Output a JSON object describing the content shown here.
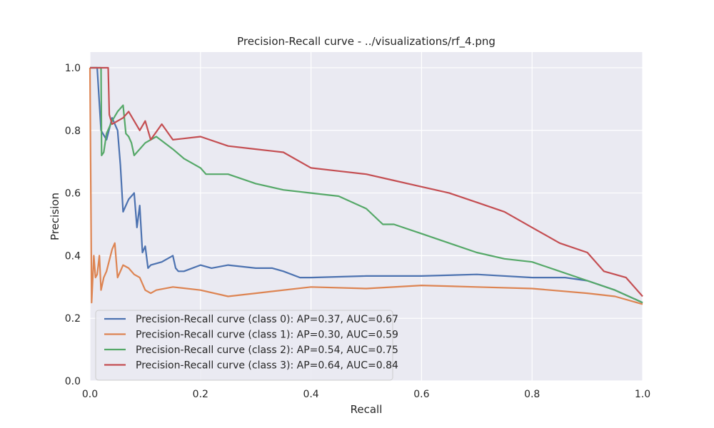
{
  "chart_data": {
    "type": "line",
    "title": "Precision-Recall curve - ../visualizations/rf_4.png",
    "xlabel": "Recall",
    "ylabel": "Precision",
    "xlim": [
      0,
      1
    ],
    "ylim": [
      0,
      1.05
    ],
    "xticks": [
      "0.0",
      "0.2",
      "0.4",
      "0.6",
      "0.8",
      "1.0"
    ],
    "yticks": [
      "0.0",
      "0.2",
      "0.4",
      "0.6",
      "0.8",
      "1.0"
    ],
    "grid": true,
    "legend_position": "lower-left",
    "background": "#eaeaf2",
    "series": [
      {
        "name": "Precision-Recall curve (class 0): AP=0.37, AUC=0.67",
        "color": "#4c72b0",
        "x": [
          0,
          0.013,
          0.02,
          0.03,
          0.04,
          0.05,
          0.055,
          0.06,
          0.065,
          0.07,
          0.08,
          0.085,
          0.09,
          0.095,
          0.1,
          0.105,
          0.11,
          0.13,
          0.15,
          0.155,
          0.16,
          0.17,
          0.2,
          0.22,
          0.25,
          0.3,
          0.33,
          0.35,
          0.38,
          0.4,
          0.5,
          0.6,
          0.7,
          0.8,
          0.86,
          0.9,
          0.95,
          1.0
        ],
        "y": [
          1.0,
          1.0,
          0.8,
          0.77,
          0.84,
          0.8,
          0.69,
          0.54,
          0.56,
          0.58,
          0.6,
          0.49,
          0.56,
          0.41,
          0.43,
          0.36,
          0.37,
          0.38,
          0.4,
          0.36,
          0.35,
          0.35,
          0.37,
          0.36,
          0.37,
          0.36,
          0.36,
          0.35,
          0.33,
          0.33,
          0.335,
          0.335,
          0.34,
          0.33,
          0.33,
          0.32,
          0.29,
          0.25
        ]
      },
      {
        "name": "Precision-Recall curve (class 1): AP=0.30, AUC=0.59",
        "color": "#dd8452",
        "x": [
          0,
          0.003,
          0.007,
          0.01,
          0.013,
          0.017,
          0.02,
          0.025,
          0.03,
          0.04,
          0.045,
          0.05,
          0.055,
          0.06,
          0.07,
          0.08,
          0.09,
          0.1,
          0.11,
          0.12,
          0.15,
          0.2,
          0.25,
          0.3,
          0.4,
          0.5,
          0.6,
          0.7,
          0.8,
          0.9,
          0.95,
          1.0
        ],
        "y": [
          1.0,
          0.25,
          0.4,
          0.33,
          0.34,
          0.4,
          0.29,
          0.33,
          0.35,
          0.42,
          0.44,
          0.33,
          0.35,
          0.37,
          0.36,
          0.34,
          0.33,
          0.29,
          0.28,
          0.29,
          0.3,
          0.29,
          0.27,
          0.28,
          0.3,
          0.295,
          0.305,
          0.3,
          0.295,
          0.28,
          0.27,
          0.245
        ]
      },
      {
        "name": "Precision-Recall curve (class 2): AP=0.54, AUC=0.75",
        "color": "#55a868",
        "x": [
          0,
          0.02,
          0.021,
          0.025,
          0.03,
          0.04,
          0.05,
          0.06,
          0.065,
          0.07,
          0.075,
          0.08,
          0.1,
          0.12,
          0.15,
          0.17,
          0.2,
          0.21,
          0.25,
          0.3,
          0.35,
          0.4,
          0.45,
          0.5,
          0.53,
          0.55,
          0.6,
          0.65,
          0.7,
          0.75,
          0.8,
          0.85,
          0.9,
          0.95,
          1.0
        ],
        "y": [
          1.0,
          1.0,
          0.72,
          0.73,
          0.79,
          0.83,
          0.86,
          0.88,
          0.79,
          0.78,
          0.76,
          0.72,
          0.76,
          0.78,
          0.74,
          0.71,
          0.68,
          0.66,
          0.66,
          0.63,
          0.61,
          0.6,
          0.59,
          0.55,
          0.5,
          0.5,
          0.47,
          0.44,
          0.41,
          0.39,
          0.38,
          0.35,
          0.32,
          0.29,
          0.25
        ]
      },
      {
        "name": "Precision-Recall curve (class 3): AP=0.64, AUC=0.84",
        "color": "#c44e52",
        "x": [
          0,
          0.02,
          0.033,
          0.035,
          0.04,
          0.06,
          0.07,
          0.09,
          0.1,
          0.11,
          0.13,
          0.15,
          0.2,
          0.25,
          0.3,
          0.35,
          0.4,
          0.45,
          0.5,
          0.55,
          0.6,
          0.65,
          0.7,
          0.75,
          0.8,
          0.85,
          0.9,
          0.93,
          0.95,
          0.97,
          1.0
        ],
        "y": [
          1.0,
          1.0,
          1.0,
          0.85,
          0.82,
          0.84,
          0.86,
          0.8,
          0.83,
          0.77,
          0.82,
          0.77,
          0.78,
          0.75,
          0.74,
          0.73,
          0.68,
          0.67,
          0.66,
          0.64,
          0.62,
          0.6,
          0.57,
          0.54,
          0.49,
          0.44,
          0.41,
          0.35,
          0.34,
          0.33,
          0.27
        ]
      }
    ]
  }
}
